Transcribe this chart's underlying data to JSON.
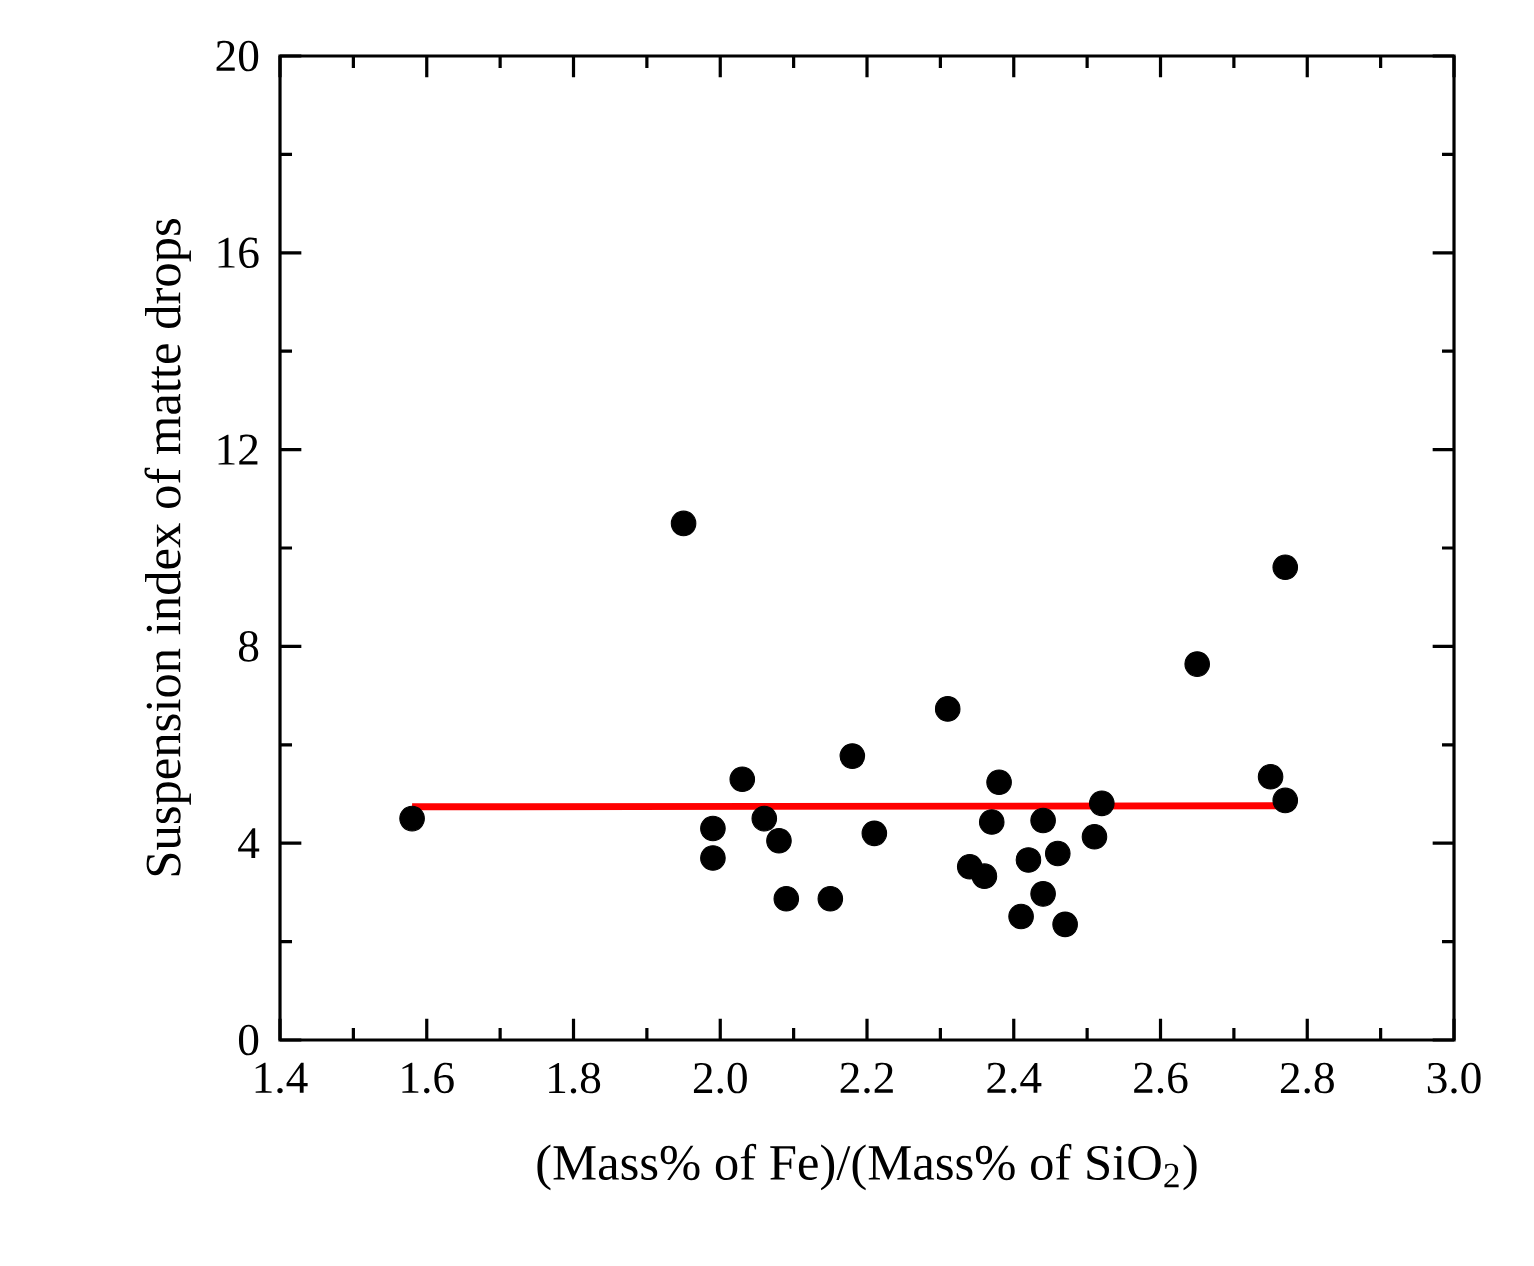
{
  "chart_data": {
    "type": "scatter",
    "xlabel": "(Mass% of Fe)/(Mass% of SiO$_{2}$)",
    "ylabel": "Suspension index of matte drops",
    "xlim": [
      1.4,
      3.0
    ],
    "ylim": [
      0,
      20
    ],
    "xticks": [
      {
        "value": 1.4,
        "label": "1.4"
      },
      {
        "value": 1.6,
        "label": "1.6"
      },
      {
        "value": 1.8,
        "label": "1.8"
      },
      {
        "value": 2.0,
        "label": "2.0"
      },
      {
        "value": 2.2,
        "label": "2.2"
      },
      {
        "value": 2.4,
        "label": "2.4"
      },
      {
        "value": 2.6,
        "label": "2.6"
      },
      {
        "value": 2.8,
        "label": "2.8"
      },
      {
        "value": 3.0,
        "label": "3.0"
      }
    ],
    "yticks": [
      0,
      4,
      8,
      12,
      16,
      20
    ],
    "grid": false,
    "marker": "circle",
    "series": [
      {
        "color": "#000000",
        "x": [
          1.58,
          1.95,
          2.03,
          1.99,
          1.99,
          2.06,
          2.08,
          2.09,
          2.15,
          2.18,
          2.21,
          2.31,
          2.38,
          2.37,
          2.44,
          2.52,
          2.51,
          2.46,
          2.42,
          2.34,
          2.36,
          2.44,
          2.41,
          2.47,
          2.65,
          2.77,
          2.75,
          2.77
        ],
        "values": [
          4.5,
          10.5,
          5.3,
          4.3,
          3.7,
          4.5,
          4.05,
          2.87,
          2.87,
          5.77,
          4.2,
          6.73,
          5.24,
          4.43,
          4.46,
          4.81,
          4.13,
          3.79,
          3.66,
          3.52,
          3.33,
          2.97,
          2.51,
          2.35,
          7.64,
          9.61,
          5.35,
          4.87
        ]
      },
      {
        "type": "line",
        "color": "#ff0000",
        "marker": "none",
        "line_style": "solid",
        "x": [
          1.58,
          2.77
        ],
        "values": [
          4.74,
          4.76
        ]
      }
    ]
  }
}
